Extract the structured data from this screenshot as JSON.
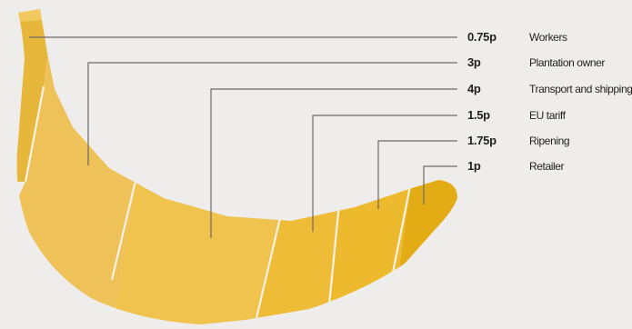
{
  "diagram": {
    "segments": [
      {
        "value": "0.75p",
        "label": "Workers",
        "color": "#e7b73b"
      },
      {
        "value": "3p",
        "label": "Plantation owner",
        "color": "#efc159"
      },
      {
        "value": "4p",
        "label": "Transport and shipping",
        "color": "#f0c24e"
      },
      {
        "value": "1.5p",
        "label": "EU tariff",
        "color": "#eebc36"
      },
      {
        "value": "1.75p",
        "label": "Ripening",
        "color": "#ecba2c"
      },
      {
        "value": "1p",
        "label": "Retailer",
        "color": "#e3ac15"
      }
    ],
    "colors": {
      "background": "#eeedeb",
      "leader_line": "#6d6a66",
      "divider": "#f7f2e6",
      "text": "#231f20"
    }
  }
}
